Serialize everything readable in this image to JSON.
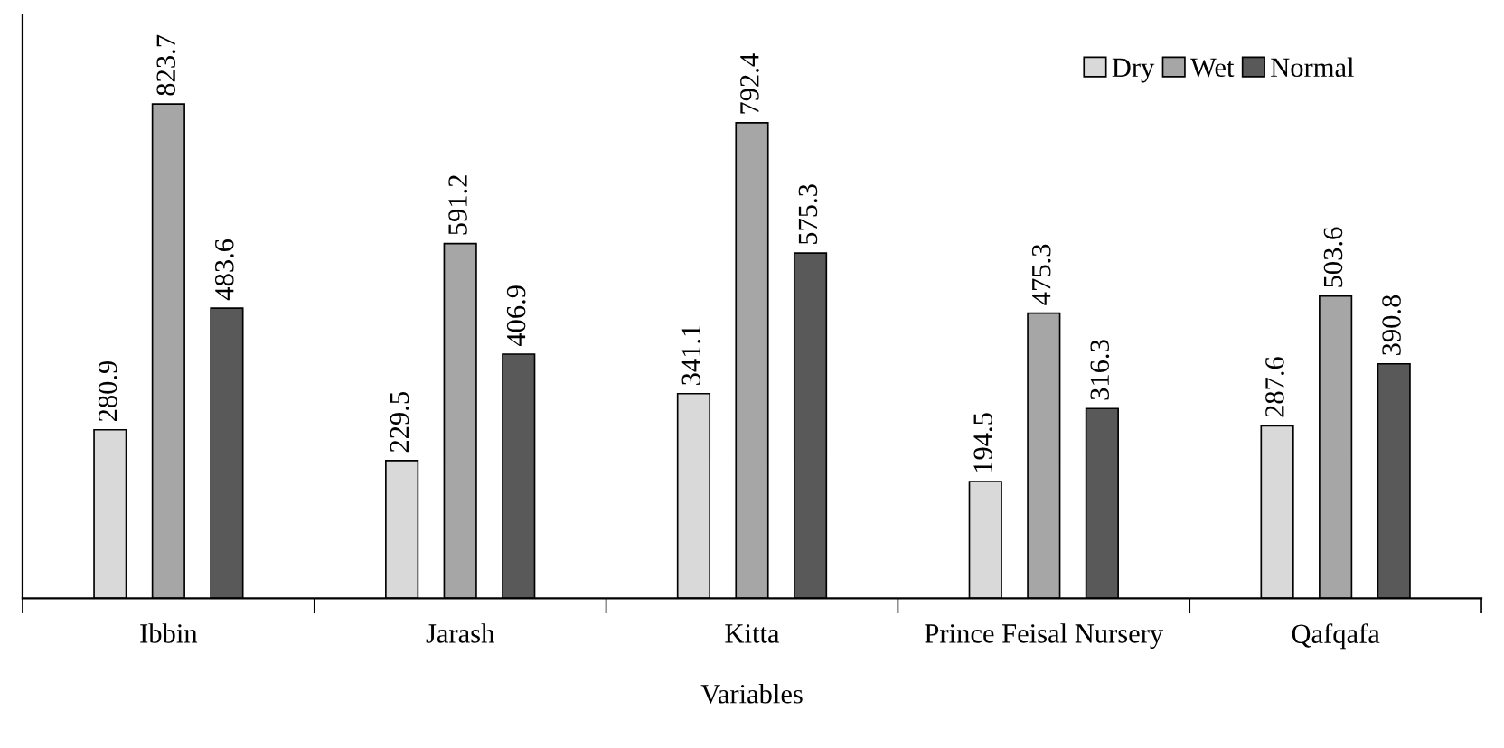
{
  "chart_data": {
    "type": "bar",
    "xlabel": "Variables",
    "categories": [
      "Ibbin",
      "Jarash",
      "Kitta",
      "Prince Feisal Nursery",
      "Qafqafa"
    ],
    "series": [
      {
        "name": "Dry",
        "color": "#d9d9d9",
        "values": [
          280.9,
          229.5,
          341.1,
          194.5,
          287.6
        ]
      },
      {
        "name": "Wet",
        "color": "#a6a6a6",
        "values": [
          823.7,
          591.2,
          792.4,
          475.3,
          503.6
        ]
      },
      {
        "name": "Normal",
        "color": "#595959",
        "values": [
          483.6,
          406.9,
          575.3,
          316.3,
          390.8
        ]
      }
    ],
    "data_labels": true,
    "legend": "top right",
    "grid": false,
    "tick_labels": "x"
  }
}
